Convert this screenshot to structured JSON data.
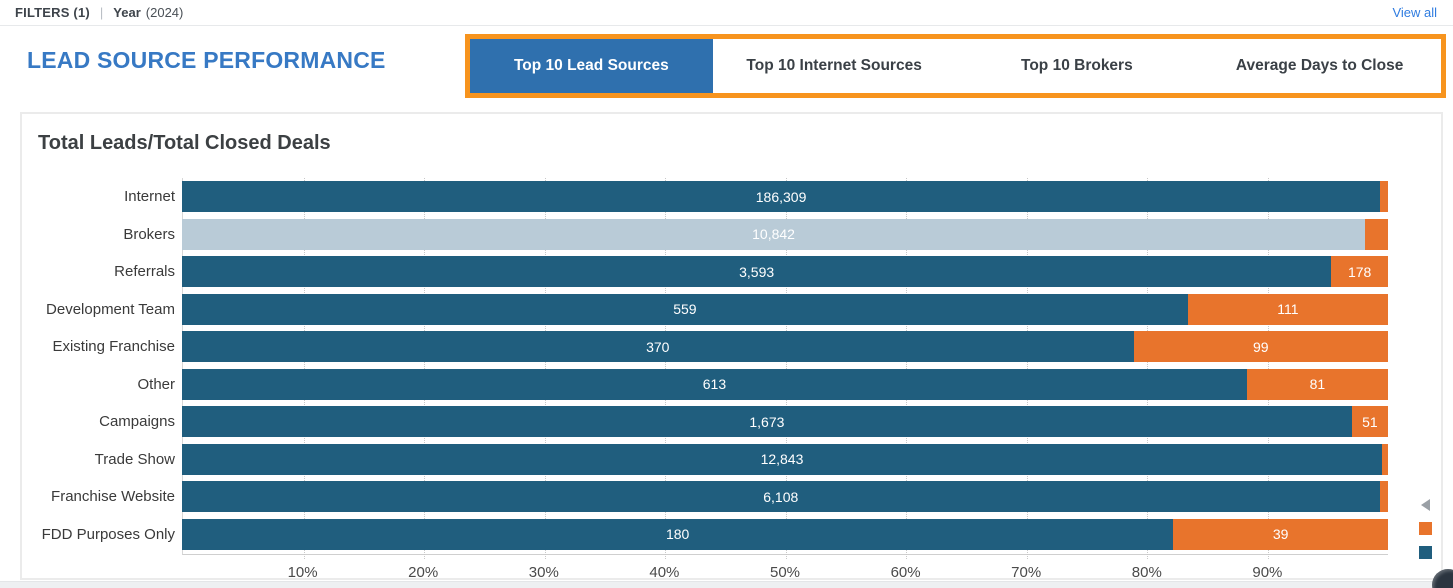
{
  "filter_bar": {
    "filters_label": "FILTERS (1)",
    "separator": "|",
    "filter_name": "Year",
    "filter_value": "(2024)",
    "view_all_label": "View all"
  },
  "header": {
    "title": "LEAD SOURCE PERFORMANCE",
    "tabs": [
      {
        "label": "Top 10 Lead Sources",
        "active": true
      },
      {
        "label": "Top 10 Internet Sources",
        "active": false
      },
      {
        "label": "Top 10 Brokers",
        "active": false
      },
      {
        "label": "Average Days to Close",
        "active": false
      }
    ]
  },
  "chart_data": {
    "type": "bar",
    "variant": "horizontal-100pct-stacked",
    "title": "Total Leads/Total Closed Deals",
    "xlabel": "",
    "ylabel": "",
    "x_axis_range_pct": [
      0,
      100
    ],
    "x_ticks": [
      "10%",
      "20%",
      "30%",
      "40%",
      "50%",
      "60%",
      "70%",
      "80%",
      "90%"
    ],
    "grid": "vertical-dotted",
    "series_names": [
      "Total Leads",
      "Total Closed Deals"
    ],
    "categories": [
      "Internet",
      "Brokers",
      "Referrals",
      "Development Team",
      "Existing Franchise",
      "Other",
      "Campaigns",
      "Trade Show",
      "Franchise Website",
      "FDD Purposes Only"
    ],
    "rows": [
      {
        "label": "Internet",
        "leads_value": "186,309",
        "closed_value": "",
        "leads_pct": 99.35,
        "closed_pct": 0.65,
        "muted": false
      },
      {
        "label": "Brokers",
        "leads_value": "10,842",
        "closed_value": "",
        "leads_pct": 98.1,
        "closed_pct": 1.9,
        "muted": true
      },
      {
        "label": "Referrals",
        "leads_value": "3,593",
        "closed_value": "178",
        "leads_pct": 95.3,
        "closed_pct": 4.7,
        "muted": false
      },
      {
        "label": "Development Team",
        "leads_value": "559",
        "closed_value": "111",
        "leads_pct": 83.4,
        "closed_pct": 16.6,
        "muted": false
      },
      {
        "label": "Existing Franchise",
        "leads_value": "370",
        "closed_value": "99",
        "leads_pct": 78.9,
        "closed_pct": 21.1,
        "muted": false
      },
      {
        "label": "Other",
        "leads_value": "613",
        "closed_value": "81",
        "leads_pct": 88.3,
        "closed_pct": 11.7,
        "muted": false
      },
      {
        "label": "Campaigns",
        "leads_value": "1,673",
        "closed_value": "51",
        "leads_pct": 97.0,
        "closed_pct": 3.0,
        "muted": false
      },
      {
        "label": "Trade Show",
        "leads_value": "12,843",
        "closed_value": "",
        "leads_pct": 99.5,
        "closed_pct": 0.5,
        "muted": false
      },
      {
        "label": "Franchise Website",
        "leads_value": "6,108",
        "closed_value": "",
        "leads_pct": 99.3,
        "closed_pct": 0.7,
        "muted": false
      },
      {
        "label": "FDD Purposes Only",
        "leads_value": "180",
        "closed_value": "39",
        "leads_pct": 82.2,
        "closed_pct": 17.8,
        "muted": false
      }
    ],
    "colors": {
      "leads": "#205e7e",
      "closed": "#e8742c",
      "muted_leads": "#b9cbd7",
      "tab_active": "#2f70ae",
      "tab_border": "#f7941e",
      "title_blue": "#3779c4",
      "link_blue": "#2f7ce0"
    },
    "legend": {
      "collapsed": true,
      "arrow_icon": "left-triangle",
      "swatches": [
        {
          "name": "Total Closed Deals",
          "color": "#e8742c"
        },
        {
          "name": "Total Leads",
          "color": "#205e7e"
        }
      ]
    }
  }
}
